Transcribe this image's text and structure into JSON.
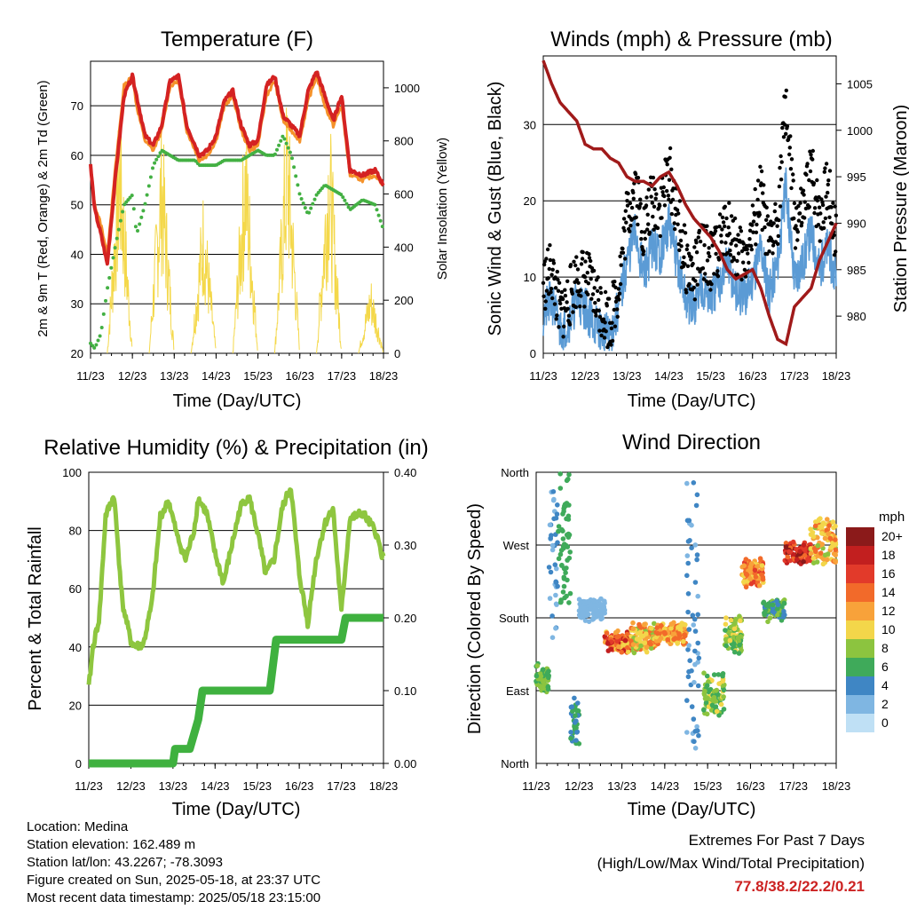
{
  "colors": {
    "temp_9m": "#d42222",
    "temp_2m": "#f5922a",
    "dewpoint": "#43b043",
    "solar": "#f4d84a",
    "wind": "#5b9bd5",
    "gust": "#000000",
    "pressure": "#a01a1a",
    "rh": "#8ec63f",
    "precip": "#3fb13f",
    "grid": "#000000",
    "extremes": "#cc2222"
  },
  "panels": {
    "temperature": {
      "title": "Temperature (F)",
      "ylabel_left": "2m & 9m T (Red, Orange) & 2m Td (Green)",
      "ylabel_right": "Solar Insolation (Yellow)",
      "xlabel": "Time (Day/UTC)"
    },
    "winds": {
      "title": "Winds (mph) & Pressure (mb)",
      "ylabel_left": "Sonic Wind & Gust (Blue, Black)",
      "ylabel_right": "Station Pressure (Maroon)",
      "xlabel": "Time (Day/UTC)"
    },
    "humidity": {
      "title": "Relative Humidity (%) & Precipitation (in)",
      "ylabel_left": "Percent & Total Rainfall",
      "xlabel": "Time (Day/UTC)"
    },
    "direction": {
      "title": "Wind Direction",
      "ylabel_left": "Direction (Colored By Speed)",
      "xlabel": "Time (Day/UTC)",
      "colorbar_title": "mph",
      "colorbar_labels": [
        "20+",
        "18",
        "16",
        "14",
        "12",
        "10",
        "8",
        "6",
        "4",
        "2",
        "0"
      ],
      "colorbar_colors": [
        "#8b1a1a",
        "#c21f1f",
        "#e23a2a",
        "#f26a2a",
        "#f8a23a",
        "#f3d64a",
        "#8cc43f",
        "#3faa5a",
        "#3f86c4",
        "#7fb6e2",
        "#bfe0f5"
      ]
    }
  },
  "info": {
    "location": "Location: Medina",
    "elevation": "Station elevation: 162.489 m",
    "latlon": "Station lat/lon: 43.2267; -78.3093",
    "created": "Figure created on Sun, 2025-05-18, at 23:37 UTC",
    "recent": "Most recent data timestamp: 2025/05/18 23:15:00"
  },
  "extremes": {
    "heading": "Extremes For Past 7 Days",
    "subheading": "(High/Low/Max Wind/Total Precipitation)",
    "values": "77.8/38.2/22.2/0.21"
  },
  "chart_data": [
    {
      "type": "line",
      "title": "Temperature (F)",
      "xlabel": "Time (Day/UTC)",
      "ylabel": "2m & 9m T (Red, Orange) & 2m Td (Green)",
      "y2label": "Solar Insolation (Yellow)",
      "x_ticks": [
        "11/23",
        "12/23",
        "13/23",
        "14/23",
        "15/23",
        "16/23",
        "17/23",
        "18/23"
      ],
      "x": [
        11.0,
        11.1,
        11.25,
        11.4,
        11.6,
        11.8,
        12.0,
        12.1,
        12.3,
        12.5,
        12.7,
        12.9,
        13.1,
        13.3,
        13.5,
        13.6,
        13.8,
        14.0,
        14.2,
        14.4,
        14.6,
        14.8,
        15.0,
        15.2,
        15.4,
        15.6,
        15.8,
        16.0,
        16.2,
        16.4,
        16.6,
        16.8,
        17.0,
        17.2,
        17.5,
        17.8,
        18.0
      ],
      "ylim": [
        20,
        79
      ],
      "y_ticks": [
        20,
        30,
        40,
        50,
        60,
        70
      ],
      "y2lim": [
        0,
        1100
      ],
      "y2_ticks": [
        0,
        200,
        400,
        600,
        800,
        1000
      ],
      "series": [
        {
          "name": "9m T",
          "values": [
            58,
            49,
            44,
            38,
            56,
            72,
            76,
            72,
            64,
            62,
            66,
            75,
            76,
            66,
            62,
            60,
            61,
            64,
            71,
            73,
            66,
            62,
            63,
            74,
            76,
            68,
            66,
            64,
            73,
            77,
            72,
            67,
            72,
            57,
            56,
            57,
            54
          ]
        },
        {
          "name": "2m T",
          "values": [
            58,
            50,
            46,
            40,
            58,
            74,
            76,
            70,
            63,
            61,
            65,
            74,
            75,
            65,
            61,
            59,
            60,
            63,
            70,
            72,
            65,
            61,
            62,
            72,
            75,
            67,
            65,
            63,
            71,
            76,
            70,
            66,
            70,
            56,
            55,
            56,
            54
          ]
        },
        {
          "name": "2m Td",
          "values": [
            22,
            21,
            24,
            33,
            42,
            50,
            52,
            44,
            50,
            58,
            61,
            60,
            59,
            59,
            59,
            58,
            58,
            58,
            59,
            59,
            59,
            60,
            61,
            60,
            60,
            64,
            60,
            52,
            48,
            52,
            54,
            53,
            52,
            49,
            51,
            50,
            45
          ]
        }
      ],
      "solar_peaks": [
        {
          "day": 11.7,
          "value": 1000
        },
        {
          "day": 12.7,
          "value": 950
        },
        {
          "day": 13.7,
          "value": 650
        },
        {
          "day": 14.7,
          "value": 960
        },
        {
          "day": 15.7,
          "value": 1050
        },
        {
          "day": 16.7,
          "value": 980
        },
        {
          "day": 17.7,
          "value": 300
        }
      ]
    },
    {
      "type": "line",
      "title": "Winds (mph) & Pressure (mb)",
      "xlabel": "Time (Day/UTC)",
      "ylabel": "Sonic Wind & Gust (Blue, Black)",
      "y2label": "Station Pressure (Maroon)",
      "x_ticks": [
        "11/23",
        "12/23",
        "13/23",
        "14/23",
        "15/23",
        "16/23",
        "17/23",
        "18/23"
      ],
      "x": [
        11.0,
        11.2,
        11.4,
        11.6,
        11.8,
        12.0,
        12.2,
        12.4,
        12.6,
        12.8,
        13.0,
        13.2,
        13.4,
        13.6,
        13.8,
        14.0,
        14.2,
        14.4,
        14.6,
        14.8,
        15.0,
        15.2,
        15.4,
        15.6,
        15.8,
        16.0,
        16.2,
        16.4,
        16.6,
        16.8,
        17.0,
        17.2,
        17.4,
        17.6,
        17.8,
        18.0
      ],
      "ylim": [
        0,
        39
      ],
      "y_ticks": [
        0,
        10,
        20,
        30
      ],
      "y2lim": [
        976,
        1008
      ],
      "y2_ticks": [
        980,
        985,
        990,
        995,
        1000,
        1005
      ],
      "series": [
        {
          "name": "Sonic Wind",
          "values": [
            5,
            7,
            3,
            4,
            7,
            6,
            4,
            3,
            2,
            6,
            12,
            16,
            10,
            14,
            13,
            17,
            12,
            7,
            6,
            9,
            7,
            9,
            12,
            8,
            7,
            10,
            14,
            8,
            12,
            22,
            10,
            12,
            16,
            11,
            14,
            9
          ]
        },
        {
          "name": "Gust",
          "values": [
            9,
            11,
            5,
            7,
            10,
            10,
            8,
            6,
            4,
            9,
            18,
            22,
            16,
            20,
            19,
            24,
            18,
            12,
            10,
            14,
            12,
            14,
            17,
            14,
            12,
            16,
            21,
            13,
            18,
            33,
            17,
            18,
            24,
            18,
            22,
            15
          ]
        },
        {
          "name": "Station Pressure",
          "values": [
            1007.5,
            1005,
            1003,
            1002,
            1001,
            998.5,
            998,
            998,
            997,
            996.5,
            995,
            994.5,
            994.5,
            994,
            995,
            995.5,
            994,
            992,
            990.5,
            989.5,
            988.5,
            987,
            985,
            984,
            984.5,
            985,
            983,
            980,
            977.5,
            977,
            981,
            982,
            983,
            986,
            988,
            990
          ]
        }
      ]
    },
    {
      "type": "line",
      "title": "Relative Humidity (%) & Precipitation (in)",
      "xlabel": "Time (Day/UTC)",
      "ylabel": "Percent & Total Rainfall",
      "x_ticks": [
        "11/23",
        "12/23",
        "13/23",
        "14/23",
        "15/23",
        "16/23",
        "17/23",
        "18/23"
      ],
      "x": [
        11.0,
        11.1,
        11.25,
        11.4,
        11.6,
        11.8,
        12.0,
        12.1,
        12.3,
        12.5,
        12.7,
        12.9,
        13.1,
        13.3,
        13.5,
        13.6,
        13.8,
        14.0,
        14.2,
        14.4,
        14.6,
        14.8,
        15.0,
        15.2,
        15.4,
        15.6,
        15.8,
        16.0,
        16.2,
        16.4,
        16.6,
        16.8,
        17.0,
        17.2,
        17.5,
        17.8,
        18.0
      ],
      "ylim": [
        0,
        100
      ],
      "y_ticks": [
        0,
        20,
        40,
        60,
        80,
        100
      ],
      "y2lim": [
        0,
        0.4
      ],
      "y2_ticks": [
        0.0,
        0.1,
        0.2,
        0.3,
        0.4
      ],
      "series": [
        {
          "name": "RH",
          "values": [
            26,
            40,
            50,
            85,
            92,
            55,
            42,
            40,
            41,
            55,
            85,
            90,
            78,
            70,
            80,
            91,
            86,
            72,
            62,
            75,
            88,
            92,
            80,
            65,
            70,
            88,
            95,
            65,
            48,
            70,
            82,
            88,
            52,
            84,
            86,
            80,
            70
          ]
        },
        {
          "name": "Precipitation",
          "steps": [
            [
              11.0,
              0.0
            ],
            [
              13.0,
              0.0
            ],
            [
              13.05,
              0.02
            ],
            [
              13.4,
              0.02
            ],
            [
              13.6,
              0.06
            ],
            [
              13.7,
              0.1
            ],
            [
              15.3,
              0.1
            ],
            [
              15.45,
              0.17
            ],
            [
              17.0,
              0.17
            ],
            [
              17.1,
              0.2
            ],
            [
              18.0,
              0.2
            ]
          ]
        }
      ]
    },
    {
      "type": "scatter",
      "title": "Wind Direction",
      "xlabel": "Time (Day/UTC)",
      "ylabel": "Direction (Colored By Speed)",
      "x_ticks": [
        "11/23",
        "12/23",
        "13/23",
        "14/23",
        "15/23",
        "16/23",
        "17/23",
        "18/23"
      ],
      "y_ticks": [
        "North",
        "East",
        "South",
        "West",
        "North"
      ],
      "ylim": [
        0,
        360
      ],
      "colorbar": {
        "title": "mph",
        "range": [
          0,
          20
        ]
      },
      "segments": [
        {
          "x": [
            11.0,
            11.3
          ],
          "dir": [
            90,
            120
          ],
          "speed": [
            6,
            8
          ]
        },
        {
          "x": [
            11.3,
            11.5
          ],
          "dir": [
            150,
            340
          ],
          "speed": [
            2,
            4
          ]
        },
        {
          "x": [
            11.5,
            11.8
          ],
          "dir": [
            200,
            360
          ],
          "speed": [
            5,
            7
          ]
        },
        {
          "x": [
            11.8,
            12.0
          ],
          "dir": [
            20,
            80
          ],
          "speed": [
            4,
            6
          ]
        },
        {
          "x": [
            12.0,
            12.6
          ],
          "dir": [
            180,
            200
          ],
          "speed": [
            1,
            3
          ]
        },
        {
          "x": [
            12.6,
            13.2
          ],
          "dir": [
            140,
            160
          ],
          "speed": [
            10,
            18
          ]
        },
        {
          "x": [
            13.2,
            13.8
          ],
          "dir": [
            140,
            170
          ],
          "speed": [
            8,
            14
          ]
        },
        {
          "x": [
            13.8,
            14.5
          ],
          "dir": [
            150,
            170
          ],
          "speed": [
            9,
            15
          ]
        },
        {
          "x": [
            14.5,
            14.8
          ],
          "dir": [
            20,
            360
          ],
          "speed": [
            2,
            5
          ]
        },
        {
          "x": [
            14.9,
            15.4
          ],
          "dir": [
            60,
            110
          ],
          "speed": [
            5,
            10
          ]
        },
        {
          "x": [
            15.4,
            15.8
          ],
          "dir": [
            140,
            180
          ],
          "speed": [
            6,
            10
          ]
        },
        {
          "x": [
            15.8,
            16.3
          ],
          "dir": [
            220,
            250
          ],
          "speed": [
            10,
            16
          ]
        },
        {
          "x": [
            16.3,
            16.8
          ],
          "dir": [
            180,
            200
          ],
          "speed": [
            4,
            8
          ]
        },
        {
          "x": [
            16.8,
            17.4
          ],
          "dir": [
            250,
            270
          ],
          "speed": [
            14,
            20
          ]
        },
        {
          "x": [
            17.4,
            18.0
          ],
          "dir": [
            250,
            300
          ],
          "speed": [
            8,
            14
          ]
        }
      ]
    }
  ]
}
